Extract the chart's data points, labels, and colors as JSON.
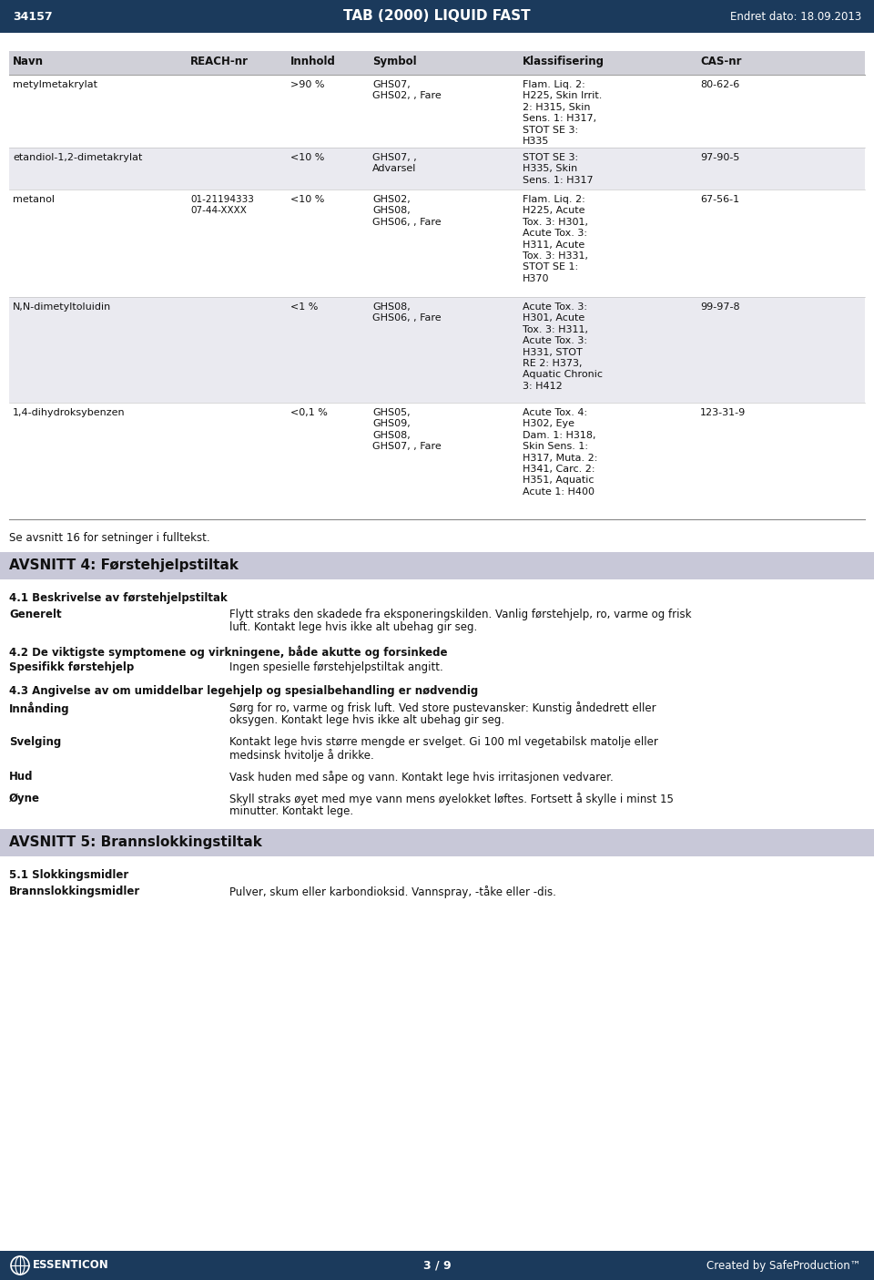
{
  "header_bg": "#1B3A5C",
  "header_text_color": "#FFFFFF",
  "doc_number": "34157",
  "doc_title": "TAB (2000) LIQUID FAST",
  "doc_date": "Endret dato: 18.09.2013",
  "table_header_bg": "#D0D0D8",
  "table_row_alt_bg": "#EAEAF0",
  "table_row_bg": "#FFFFFF",
  "section_header_bg": "#C8C8D8",
  "footer_bg": "#1B3A5C",
  "footer_text_color": "#FFFFFF",
  "col_headers": [
    "Navn",
    "REACH-nr",
    "Innhold",
    "Symbol",
    "Klassifisering",
    "CAS-nr"
  ],
  "rows": [
    {
      "navn": "metylmetakrylat",
      "reach": "",
      "innhold": ">90 %",
      "symbol": "GHS07,\nGHS02, , Fare",
      "klassifisering": "Flam. Liq. 2:\nH225, Skin Irrit.\n2: H315, Skin\nSens. 1: H317,\nSTOT SE 3:\nH335",
      "cas": "80-62-6"
    },
    {
      "navn": "etandiol-1,2-dimetakrylat",
      "reach": "",
      "innhold": "<10 %",
      "symbol": "GHS07, ,\nAdvarsel",
      "klassifisering": "STOT SE 3:\nH335, Skin\nSens. 1: H317",
      "cas": "97-90-5"
    },
    {
      "navn": "metanol",
      "reach": "01-21194333\n07-44-XXXX",
      "innhold": "<10 %",
      "symbol": "GHS02,\nGHS08,\nGHS06, , Fare",
      "klassifisering": "Flam. Liq. 2:\nH225, Acute\nTox. 3: H301,\nAcute Tox. 3:\nH311, Acute\nTox. 3: H331,\nSTOT SE 1:\nH370",
      "cas": "67-56-1"
    },
    {
      "navn": "N,N-dimetyltoluidin",
      "reach": "",
      "innhold": "<1 %",
      "symbol": "GHS08,\nGHS06, , Fare",
      "klassifisering": "Acute Tox. 3:\nH301, Acute\nTox. 3: H311,\nAcute Tox. 3:\nH331, STOT\nRE 2: H373,\nAquatic Chronic\n3: H412",
      "cas": "99-97-8"
    },
    {
      "navn": "1,4-dihydroksybenzen",
      "reach": "",
      "innhold": "<0,1 %",
      "symbol": "GHS05,\nGHS09,\nGHS08,\nGHS07, , Fare",
      "klassifisering": "Acute Tox. 4:\nH302, Eye\nDam. 1: H318,\nSkin Sens. 1:\nH317, Muta. 2:\nH341, Carc. 2:\nH351, Aquatic\nAcute 1: H400",
      "cas": "123-31-9"
    }
  ],
  "note_text": "Se avsnitt 16 for setninger i fulltekst.",
  "section4_title": "AVSNITT 4: Førstehjelpstiltak",
  "subsection41": "4.1 Beskrivelse av førstehjelpstiltak",
  "generelt_label": "Generelt",
  "generelt_text": "Flytt straks den skadede fra eksponeringskilden. Vanlig førstehjelp, ro, varme og frisk\nluft. Kontakt lege hvis ikke alt ubehag gir seg.",
  "subsection42": "4.2 De viktigste symptomene og virkningene, både akutte og forsinkede",
  "spesifikk_label": "Spesifikk førstehjelp",
  "spesifikk_text": "Ingen spesielle førstehjelpstiltak angitt.",
  "subsection43": "4.3 Angivelse av om umiddelbar legehjelp og spesialbehandling er nødvendig",
  "innanding_label": "Innånding",
  "innanding_text": "Sørg for ro, varme og frisk luft. Ved store pustevansker: Kunstig åndedrett eller\noksygen. Kontakt lege hvis ikke alt ubehag gir seg.",
  "svelging_label": "Svelging",
  "svelging_text": "Kontakt lege hvis større mengde er svelget. Gi 100 ml vegetabilsk matolje eller\nmedsinsk hvitolje å drikke.",
  "hud_label": "Hud",
  "hud_text": "Vask huden med såpe og vann. Kontakt lege hvis irritasjonen vedvarer.",
  "oyne_label": "Øyne",
  "oyne_text": "Skyll straks øyet med mye vann mens øyelokket løftes. Fortsett å skylle i minst 15\nminutter. Kontakt lege.",
  "section5_title": "AVSNITT 5: Brannslokkingstiltak",
  "subsection51": "5.1 Slokkingsmidler",
  "brann_label": "Brannslokkingsmidler",
  "brann_text": "Pulver, skum eller karbondioksid. Vannspray, -tåke eller -dis.",
  "footer_left": "ESSENTICON",
  "footer_center": "3 / 9",
  "footer_right": "Created by SafeProduction™"
}
